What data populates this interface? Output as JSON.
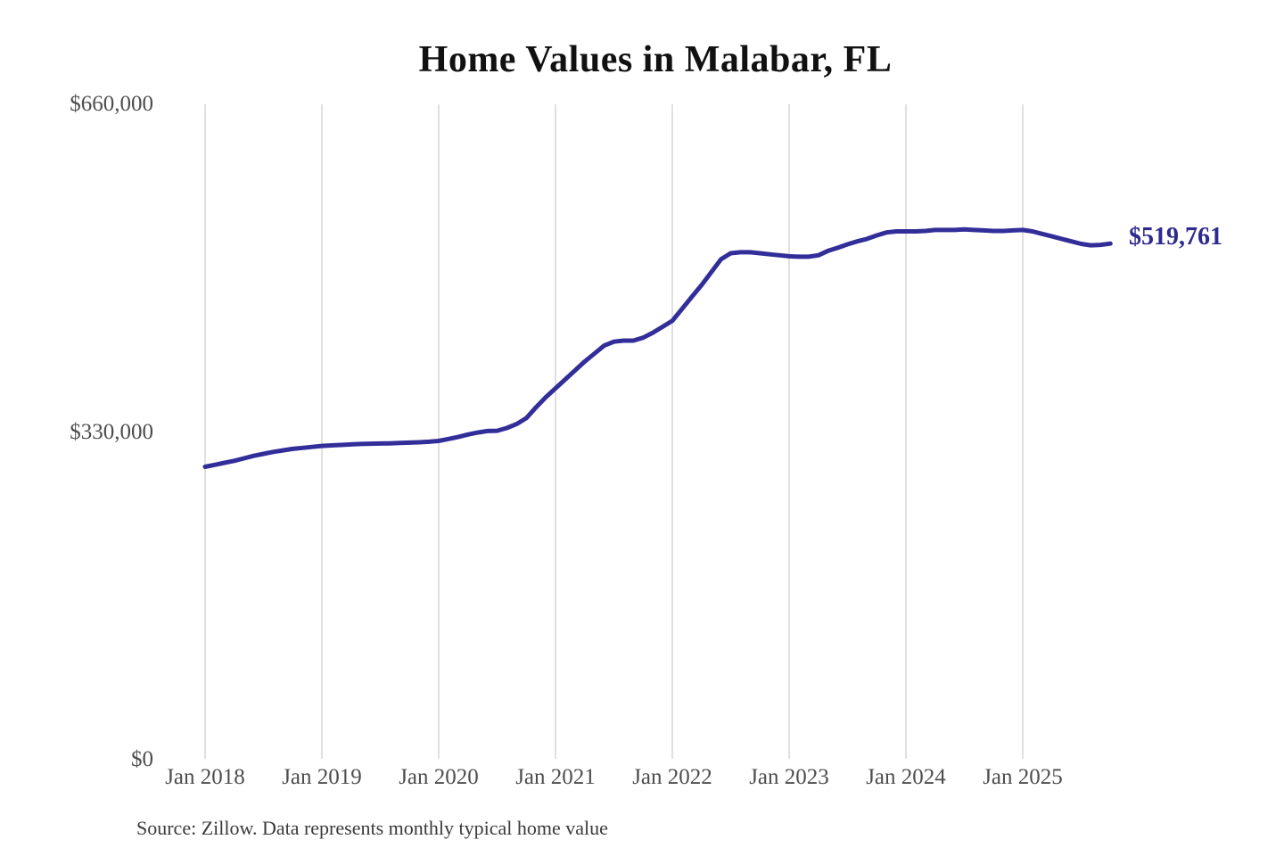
{
  "chart_data": {
    "type": "line",
    "title": "Home Values in Malabar, FL",
    "series_name": "Monthly typical home value",
    "source_note": "Source: Zillow. Data represents monthly typical home value",
    "end_label": "$519,761",
    "end_value": 519761,
    "ylim": [
      0,
      660000
    ],
    "y_ticks": [
      660000,
      330000,
      0
    ],
    "y_tick_labels": [
      "$660,000",
      "$330,000",
      "$0"
    ],
    "x_tick_labels": [
      "Jan 2018",
      "Jan 2019",
      "Jan 2020",
      "Jan 2021",
      "Jan 2022",
      "Jan 2023",
      "Jan 2024",
      "Jan 2025"
    ],
    "grid": "vertical-only",
    "legend": "none",
    "colors": {
      "line": "#322e99",
      "end_label": "#2e2a8e",
      "gridline": "#cccccc",
      "title": "#111111",
      "axis_labels": "#4d4d4d",
      "source": "#3a3a3a",
      "background": "#ffffff"
    },
    "x": [
      "Jan 2018",
      "Feb 2018",
      "Mar 2018",
      "Apr 2018",
      "May 2018",
      "Jun 2018",
      "Jul 2018",
      "Aug 2018",
      "Sep 2018",
      "Oct 2018",
      "Nov 2018",
      "Dec 2018",
      "Jan 2019",
      "Feb 2019",
      "Mar 2019",
      "Apr 2019",
      "May 2019",
      "Jun 2019",
      "Jul 2019",
      "Aug 2019",
      "Sep 2019",
      "Oct 2019",
      "Nov 2019",
      "Dec 2019",
      "Jan 2020",
      "Feb 2020",
      "Mar 2020",
      "Apr 2020",
      "May 2020",
      "Jun 2020",
      "Jul 2020",
      "Aug 2020",
      "Sep 2020",
      "Oct 2020",
      "Nov 2020",
      "Dec 2020",
      "Jan 2021",
      "Feb 2021",
      "Mar 2021",
      "Apr 2021",
      "May 2021",
      "Jun 2021",
      "Jul 2021",
      "Aug 2021",
      "Sep 2021",
      "Oct 2021",
      "Nov 2021",
      "Dec 2021",
      "Jan 2022",
      "Feb 2022",
      "Mar 2022",
      "Apr 2022",
      "May 2022",
      "Jun 2022",
      "Jul 2022",
      "Aug 2022",
      "Sep 2022",
      "Oct 2022",
      "Nov 2022",
      "Dec 2022",
      "Jan 2023",
      "Feb 2023",
      "Mar 2023",
      "Apr 2023",
      "May 2023",
      "Jun 2023",
      "Jul 2023",
      "Aug 2023",
      "Sep 2023",
      "Oct 2023",
      "Nov 2023",
      "Dec 2023",
      "Jan 2024",
      "Feb 2024",
      "Mar 2024",
      "Apr 2024",
      "May 2024",
      "Jun 2024",
      "Jul 2024",
      "Aug 2024",
      "Sep 2024",
      "Oct 2024",
      "Nov 2024",
      "Dec 2024",
      "Jan 2025",
      "Feb 2025",
      "Mar 2025",
      "Apr 2025",
      "May 2025",
      "Jun 2025",
      "Jul 2025",
      "Aug 2025",
      "Sep 2025",
      "Oct 2025"
    ],
    "values": [
      295000,
      297000,
      299000,
      301000,
      303500,
      306000,
      308000,
      310000,
      311500,
      313000,
      314000,
      315000,
      316000,
      316500,
      317000,
      317500,
      318000,
      318200,
      318400,
      318600,
      319000,
      319300,
      319700,
      320200,
      321000,
      323000,
      325000,
      327500,
      329500,
      331000,
      331300,
      334000,
      338000,
      344000,
      355000,
      365000,
      374000,
      383000,
      392000,
      401000,
      409000,
      417000,
      421000,
      422000,
      422000,
      425000,
      430000,
      436000,
      442000,
      454000,
      466000,
      478000,
      491000,
      504000,
      510000,
      511000,
      511000,
      510000,
      509000,
      508000,
      507000,
      506500,
      506500,
      508000,
      512500,
      515500,
      519000,
      522000,
      524500,
      528000,
      531000,
      532000,
      532000,
      532000,
      532500,
      533500,
      533500,
      533500,
      534000,
      533500,
      533000,
      532500,
      532500,
      533000,
      533500,
      532000,
      529500,
      527000,
      524500,
      522000,
      519500,
      518000,
      518500,
      519761
    ]
  }
}
